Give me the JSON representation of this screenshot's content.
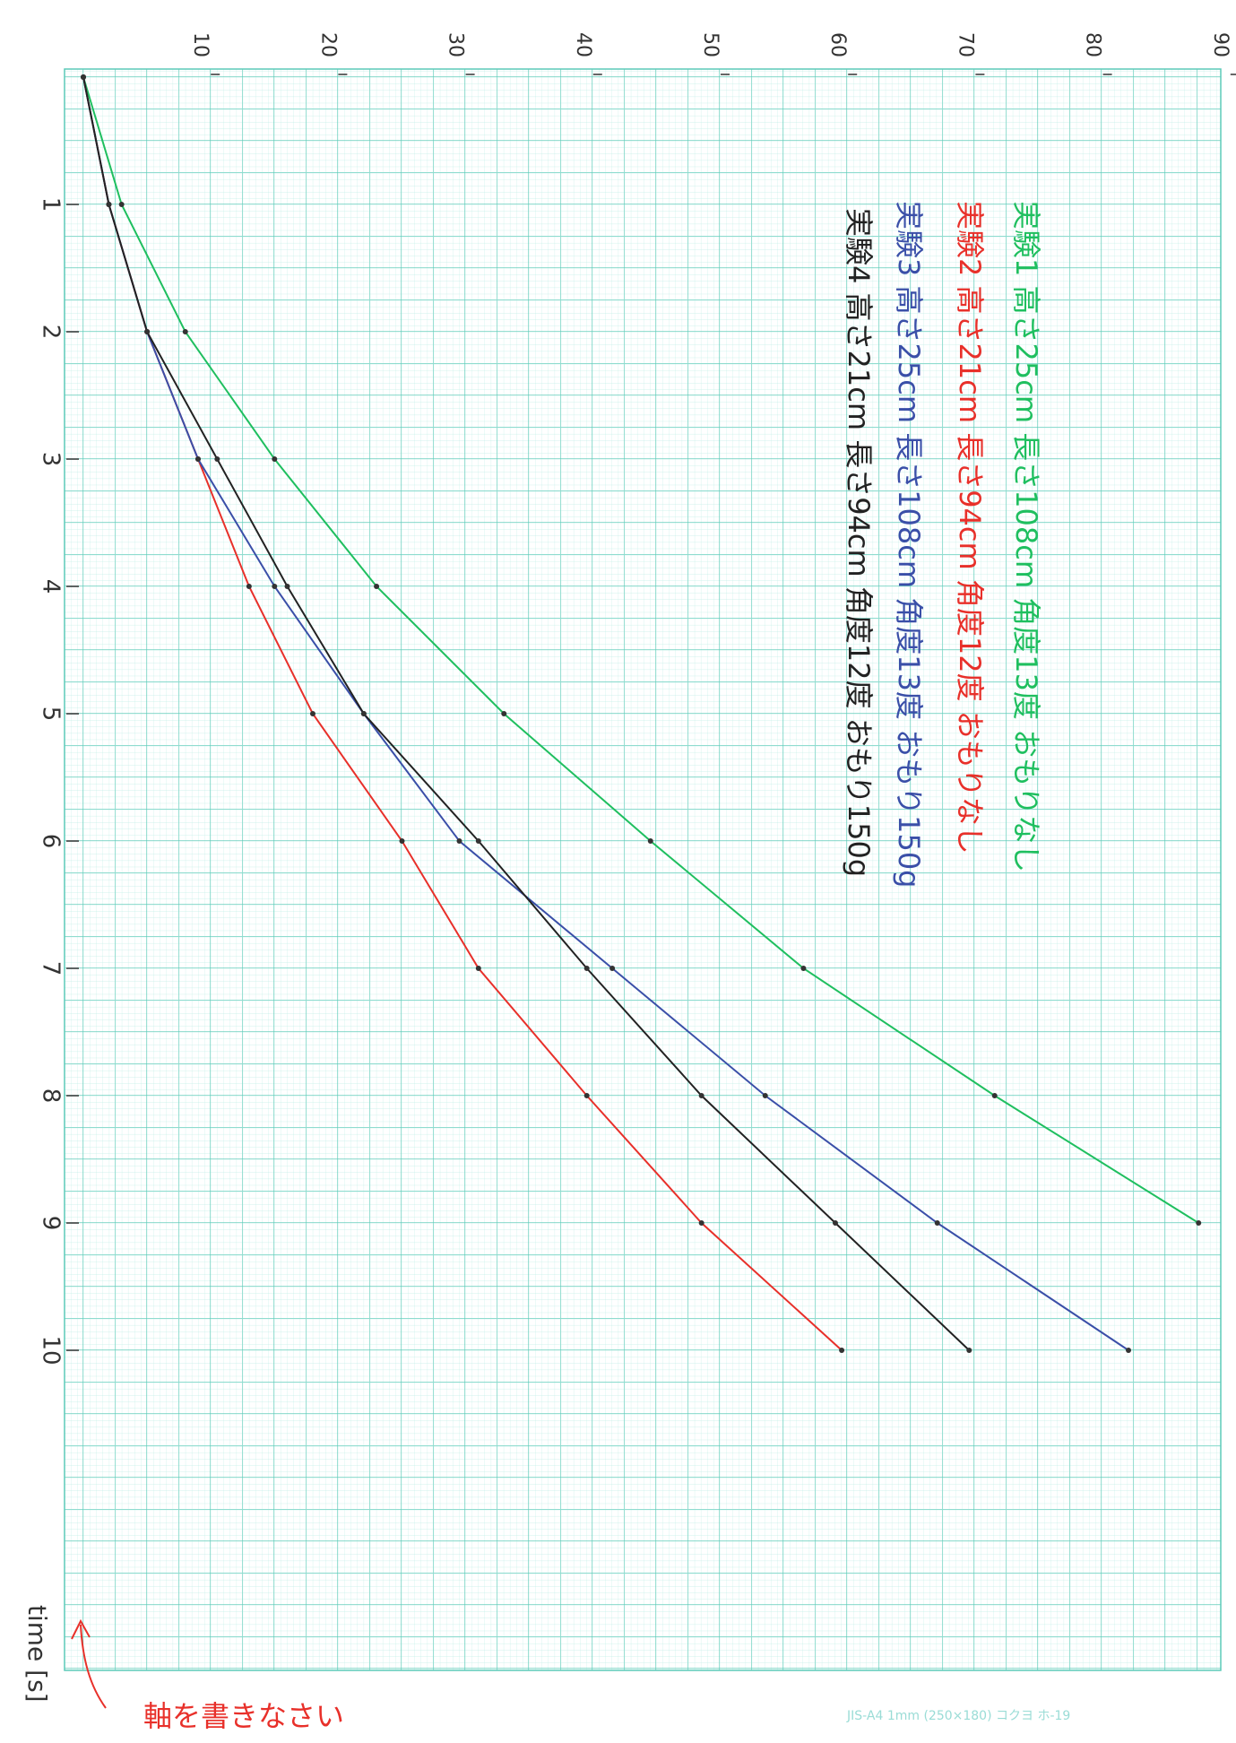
{
  "chart_data": {
    "type": "line",
    "x_label": "time [s]",
    "x": [
      0,
      1,
      2,
      3,
      4,
      5,
      6,
      7,
      8,
      9,
      10
    ],
    "xlim": [
      0,
      12.5
    ],
    "xticks": [
      1,
      2,
      3,
      4,
      5,
      6,
      7,
      8,
      9,
      10
    ],
    "ylim": [
      0,
      90
    ],
    "yticks": [
      10,
      20,
      30,
      40,
      50,
      60,
      70,
      80,
      90
    ],
    "grid": true,
    "series": [
      {
        "name": "実験1 高さ25cm 長さ108cm 角度13度 おもりなし",
        "color": "#1fbf5f",
        "values": [
          0,
          3,
          8,
          15,
          23,
          33,
          44.5,
          56.5,
          71.5,
          87.5,
          null
        ]
      },
      {
        "name": "実験2 高さ21cm 長さ94cm 角度12度 おもりなし",
        "color": "#e8302a",
        "values": [
          0,
          2,
          5,
          9,
          13,
          18,
          25,
          31,
          39.5,
          48.5,
          59.5
        ]
      },
      {
        "name": "実験3 高さ25cm 長さ108cm 角度13度 おもり150g",
        "color": "#3a4fa8",
        "values": [
          0,
          2,
          5,
          9,
          15,
          22,
          29.5,
          41.5,
          53.5,
          67,
          82
        ]
      },
      {
        "name": "実験4 高さ21cm 長さ94cm 角度12度 おもり150g",
        "color": "#222222",
        "values": [
          0,
          2,
          5,
          10.5,
          16,
          22,
          31,
          39.5,
          48.5,
          59,
          69.5
        ]
      }
    ],
    "annotation": "軸を書きなさい",
    "paper_label": "JIS-A4  1mm (250×180)  コクヨ  ホ-19"
  }
}
